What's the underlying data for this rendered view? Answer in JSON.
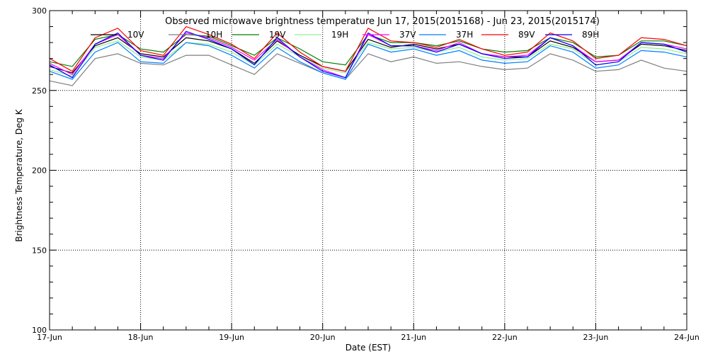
{
  "chart_data": {
    "type": "line",
    "title": "Observed microwave brightness temperature Jun 17, 2015(2015168) - Jun 23, 2015(2015174)",
    "xlabel": "Date (EST)",
    "ylabel": "Brightness Temperature, Deg K",
    "xlim": [
      "17-Jun",
      "24-Jun"
    ],
    "ylim": [
      100,
      300
    ],
    "x_ticks": [
      "17-Jun",
      "18-Jun",
      "19-Jun",
      "20-Jun",
      "21-Jun",
      "22-Jun",
      "23-Jun",
      "24-Jun"
    ],
    "y_ticks": [
      100,
      150,
      200,
      250,
      300
    ],
    "grid": "dotted",
    "legend_position": "top",
    "x": [
      "17-Jun 00:00",
      "17-Jun 06:00",
      "17-Jun 12:00",
      "17-Jun 18:00",
      "18-Jun 00:00",
      "18-Jun 06:00",
      "18-Jun 12:00",
      "18-Jun 18:00",
      "19-Jun 00:00",
      "19-Jun 06:00",
      "19-Jun 12:00",
      "19-Jun 18:00",
      "20-Jun 00:00",
      "20-Jun 06:00",
      "20-Jun 12:00",
      "20-Jun 18:00",
      "21-Jun 00:00",
      "21-Jun 06:00",
      "21-Jun 12:00",
      "21-Jun 18:00",
      "22-Jun 00:00",
      "22-Jun 06:00",
      "22-Jun 12:00",
      "22-Jun 18:00",
      "23-Jun 00:00",
      "23-Jun 06:00",
      "23-Jun 12:00",
      "23-Jun 18:00",
      "24-Jun 00:00"
    ],
    "series": [
      {
        "name": "10V",
        "color": "#000000",
        "values": [
          265,
          261,
          278,
          283,
          273,
          271,
          283,
          281,
          276,
          267,
          281,
          272,
          265,
          262,
          282,
          277,
          279,
          276,
          279,
          273,
          271,
          271,
          281,
          277,
          268,
          269,
          279,
          278,
          275
        ]
      },
      {
        "name": "10H",
        "color": "#7f7f7f",
        "values": [
          256,
          253,
          270,
          273,
          267,
          266,
          272,
          272,
          266,
          260,
          273,
          267,
          261,
          257,
          273,
          268,
          271,
          267,
          268,
          265,
          263,
          264,
          273,
          269,
          262,
          263,
          269,
          264,
          262
        ]
      },
      {
        "name": "19V",
        "color": "#008000",
        "values": [
          268,
          265,
          282,
          285,
          276,
          274,
          285,
          284,
          278,
          272,
          283,
          276,
          268,
          266,
          285,
          280,
          280,
          278,
          281,
          276,
          274,
          275,
          283,
          280,
          271,
          272,
          281,
          281,
          278
        ]
      },
      {
        "name": "19H",
        "color": "#90ee90",
        "values": [
          263,
          259,
          277,
          281,
          271,
          269,
          280,
          279,
          274,
          266,
          279,
          271,
          264,
          261,
          280,
          276,
          277,
          274,
          277,
          271,
          269,
          270,
          279,
          276,
          266,
          268,
          277,
          276,
          273
        ]
      },
      {
        "name": "37V",
        "color": "#ff00ff",
        "values": [
          267,
          260,
          279,
          285,
          272,
          270,
          286,
          283,
          277,
          269,
          282,
          271,
          263,
          258,
          285,
          278,
          278,
          275,
          280,
          273,
          271,
          272,
          283,
          278,
          268,
          269,
          280,
          279,
          276
        ]
      },
      {
        "name": "37H",
        "color": "#0080ff",
        "values": [
          262,
          257,
          274,
          280,
          268,
          267,
          280,
          278,
          272,
          264,
          277,
          268,
          261,
          257,
          279,
          274,
          276,
          272,
          275,
          269,
          267,
          268,
          278,
          274,
          264,
          266,
          275,
          274,
          271
        ]
      },
      {
        "name": "89V",
        "color": "#ff0000",
        "values": [
          270,
          262,
          283,
          289,
          275,
          272,
          290,
          285,
          279,
          270,
          286,
          274,
          265,
          262,
          289,
          281,
          280,
          277,
          282,
          276,
          272,
          274,
          286,
          281,
          270,
          272,
          283,
          282,
          278
        ]
      },
      {
        "name": "89H",
        "color": "#0000ff",
        "values": [
          266,
          258,
          279,
          286,
          272,
          269,
          287,
          282,
          276,
          266,
          283,
          271,
          262,
          258,
          286,
          278,
          278,
          274,
          279,
          273,
          270,
          271,
          283,
          278,
          266,
          268,
          280,
          279,
          274
        ]
      }
    ]
  }
}
